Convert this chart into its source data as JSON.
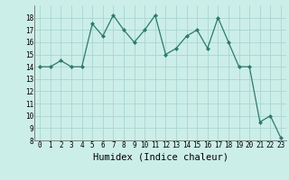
{
  "x": [
    0,
    1,
    2,
    3,
    4,
    5,
    6,
    7,
    8,
    9,
    10,
    11,
    12,
    13,
    14,
    15,
    16,
    17,
    18,
    19,
    20,
    21,
    22,
    23
  ],
  "y": [
    14,
    14,
    14.5,
    14,
    14,
    17.5,
    16.5,
    18.2,
    17,
    16,
    17,
    18.2,
    15,
    15.5,
    16.5,
    17,
    15.5,
    18,
    16,
    14,
    14,
    9.5,
    10,
    8.2
  ],
  "xlabel": "Humidex (Indice chaleur)",
  "line_color": "#2d7a6e",
  "marker_color": "#2d7a6e",
  "bg_color": "#cceee8",
  "grid_color": "#aad6d0",
  "xlim": [
    -0.5,
    23.5
  ],
  "ylim": [
    8,
    19
  ],
  "yticks": [
    8,
    9,
    10,
    11,
    12,
    13,
    14,
    15,
    16,
    17,
    18
  ],
  "xticks": [
    0,
    1,
    2,
    3,
    4,
    5,
    6,
    7,
    8,
    9,
    10,
    11,
    12,
    13,
    14,
    15,
    16,
    17,
    18,
    19,
    20,
    21,
    22,
    23
  ],
  "tick_fontsize": 5.5,
  "xlabel_fontsize": 7.5
}
